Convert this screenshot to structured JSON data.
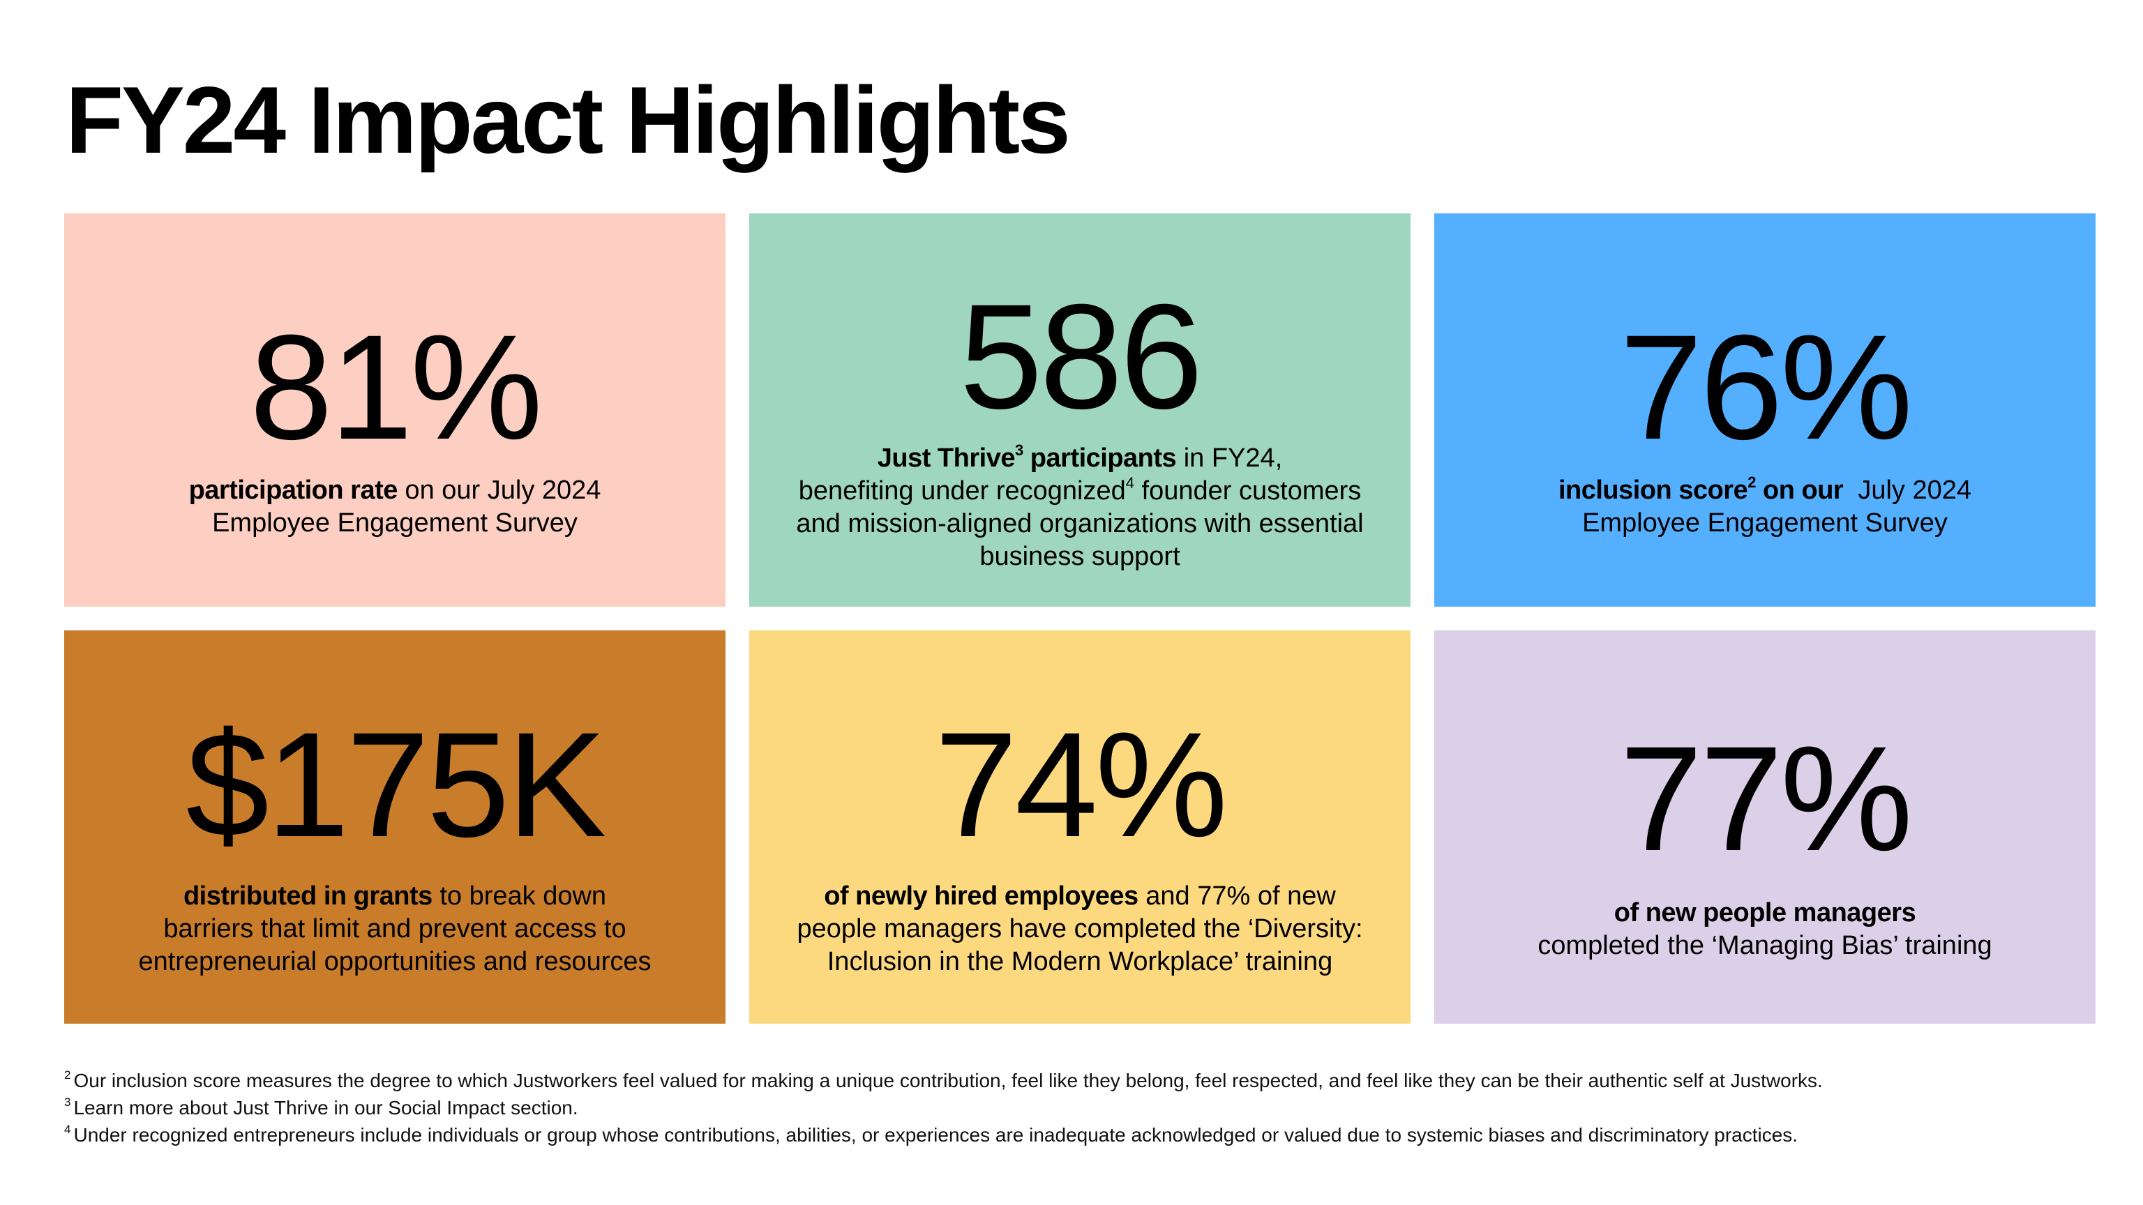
{
  "title": "FY24 Impact Highlights",
  "colors": {
    "participation": "#FCCFC2",
    "just_thrive": "#9FD6C0",
    "inclusion": "#55AFFF",
    "grants": "#C97D2A",
    "new_hires": "#FCD97E",
    "managers": "#DBD0E8"
  },
  "cards": {
    "participation": {
      "value": "81%",
      "lead": "participation rate",
      "line1_rest": " on our July 2024",
      "line2": "Employee Engagement Survey"
    },
    "just_thrive": {
      "value": "586",
      "lead": "Just Thrive",
      "lead_sup": "3",
      "lead_after": " participants",
      "line1_rest": " in FY24,",
      "line2_pre": "benefiting under recognized",
      "line2_sup": "4",
      "line2_post": " founder customers",
      "line3": "and mission-aligned organizations with essential",
      "line4": "business support"
    },
    "inclusion": {
      "value": "76%",
      "lead": "inclusion score",
      "lead_sup": "2",
      "lead_after": " on our",
      "line1_rest": "  July 2024",
      "line2": "Employee Engagement Survey"
    },
    "grants": {
      "value": "$175K",
      "lead": "distributed in grants",
      "line1_rest": " to break down",
      "line2": "barriers that limit and prevent access to",
      "line3": "entrepreneurial opportunities and resources"
    },
    "new_hires": {
      "value": "74%",
      "lead": "of newly hired employees",
      "line1_rest": " and 77% of new",
      "line2": "people managers have completed the ‘Diversity:",
      "line3": "Inclusion in the Modern Workplace’ training"
    },
    "managers": {
      "value": "77%",
      "lead": "of new people managers",
      "line2": "completed the ‘Managing Bias’ training"
    }
  },
  "footnotes": [
    {
      "marker": "2",
      "text": "Our inclusion score measures the degree to which Justworkers feel valued for making a unique contribution, feel like they belong, feel respected, and feel like they can be their authentic self at Justworks."
    },
    {
      "marker": "3",
      "text": "Learn more about Just Thrive in our Social Impact section."
    },
    {
      "marker": "4",
      "text": "Under recognized entrepreneurs include individuals or group whose contributions, abilities, or experiences are inadequate acknowledged or valued due to systemic biases and discriminatory practices."
    }
  ]
}
